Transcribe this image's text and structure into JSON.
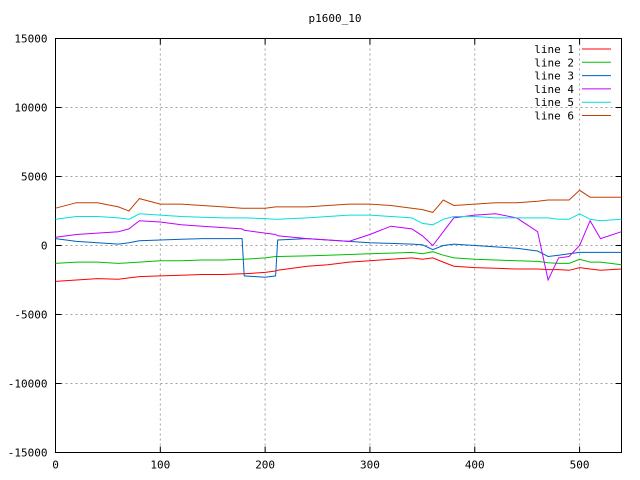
{
  "chart_data": {
    "type": "line",
    "title": "p1600_10",
    "xlabel": "",
    "ylabel": "",
    "xlim": [
      0,
      540
    ],
    "ylim": [
      -15000,
      15000
    ],
    "xticks": [
      "0",
      "100",
      "200",
      "300",
      "400",
      "500"
    ],
    "yticks": [
      "15000",
      "10000",
      "5000",
      "0",
      "-5000",
      "-10000",
      "-15000"
    ],
    "grid": true,
    "legend_position": "top-right",
    "x": [
      0,
      20,
      40,
      60,
      70,
      80,
      100,
      120,
      140,
      160,
      178,
      180,
      200,
      210,
      212,
      240,
      260,
      280,
      300,
      320,
      340,
      350,
      360,
      370,
      380,
      400,
      420,
      440,
      460,
      470,
      480,
      490,
      500,
      510,
      520,
      540
    ],
    "series": [
      {
        "name": "line 1",
        "color": "#ff0000",
        "values": [
          -2600,
          -2500,
          -2400,
          -2450,
          -2350,
          -2250,
          -2200,
          -2150,
          -2100,
          -2100,
          -2050,
          -2050,
          -1950,
          -1850,
          -1800,
          -1500,
          -1400,
          -1200,
          -1100,
          -1000,
          -900,
          -1000,
          -900,
          -1200,
          -1500,
          -1600,
          -1650,
          -1700,
          -1700,
          -1750,
          -1750,
          -1800,
          -1600,
          -1700,
          -1800,
          -1700
        ]
      },
      {
        "name": "line 2",
        "color": "#00c000",
        "values": [
          -1300,
          -1200,
          -1200,
          -1300,
          -1250,
          -1200,
          -1100,
          -1100,
          -1050,
          -1050,
          -1000,
          -1000,
          -900,
          -800,
          -800,
          -750,
          -700,
          -650,
          -600,
          -550,
          -500,
          -600,
          -450,
          -700,
          -900,
          -1000,
          -1050,
          -1100,
          -1150,
          -1250,
          -1300,
          -1300,
          -1000,
          -1200,
          -1200,
          -1400
        ]
      },
      {
        "name": "line 3",
        "color": "#0060c0",
        "values": [
          500,
          300,
          200,
          100,
          200,
          350,
          400,
          450,
          500,
          500,
          500,
          -2200,
          -2300,
          -2200,
          400,
          500,
          400,
          300,
          200,
          150,
          100,
          50,
          -300,
          0,
          100,
          0,
          -100,
          -200,
          -400,
          -800,
          -700,
          -600,
          -500,
          -500,
          -500,
          -500
        ]
      },
      {
        "name": "line 4",
        "color": "#c000ff",
        "values": [
          600,
          800,
          900,
          1000,
          1200,
          1800,
          1700,
          1500,
          1400,
          1300,
          1200,
          1100,
          900,
          800,
          700,
          500,
          400,
          300,
          800,
          1400,
          1200,
          700,
          0,
          1000,
          2000,
          2200,
          2300,
          2000,
          1000,
          -2500,
          -900,
          -800,
          0,
          1800,
          500,
          1000
        ]
      },
      {
        "name": "line 5",
        "color": "#00e0e0",
        "values": [
          1900,
          2100,
          2100,
          2000,
          1900,
          2300,
          2200,
          2100,
          2050,
          2000,
          2000,
          2000,
          1950,
          1900,
          1900,
          2000,
          2100,
          2200,
          2200,
          2100,
          2000,
          1600,
          1500,
          1900,
          2100,
          2100,
          2000,
          2000,
          2000,
          2000,
          1900,
          1900,
          2300,
          1900,
          1800,
          1900
        ]
      },
      {
        "name": "line 6",
        "color": "#c04000",
        "values": [
          2700,
          3100,
          3100,
          2800,
          2500,
          3400,
          3000,
          3000,
          2900,
          2800,
          2700,
          2700,
          2700,
          2800,
          2800,
          2800,
          2900,
          3000,
          3000,
          2900,
          2700,
          2600,
          2400,
          3300,
          2900,
          3000,
          3100,
          3100,
          3200,
          3300,
          3300,
          3300,
          4000,
          3500,
          3500,
          3500
        ]
      }
    ]
  }
}
